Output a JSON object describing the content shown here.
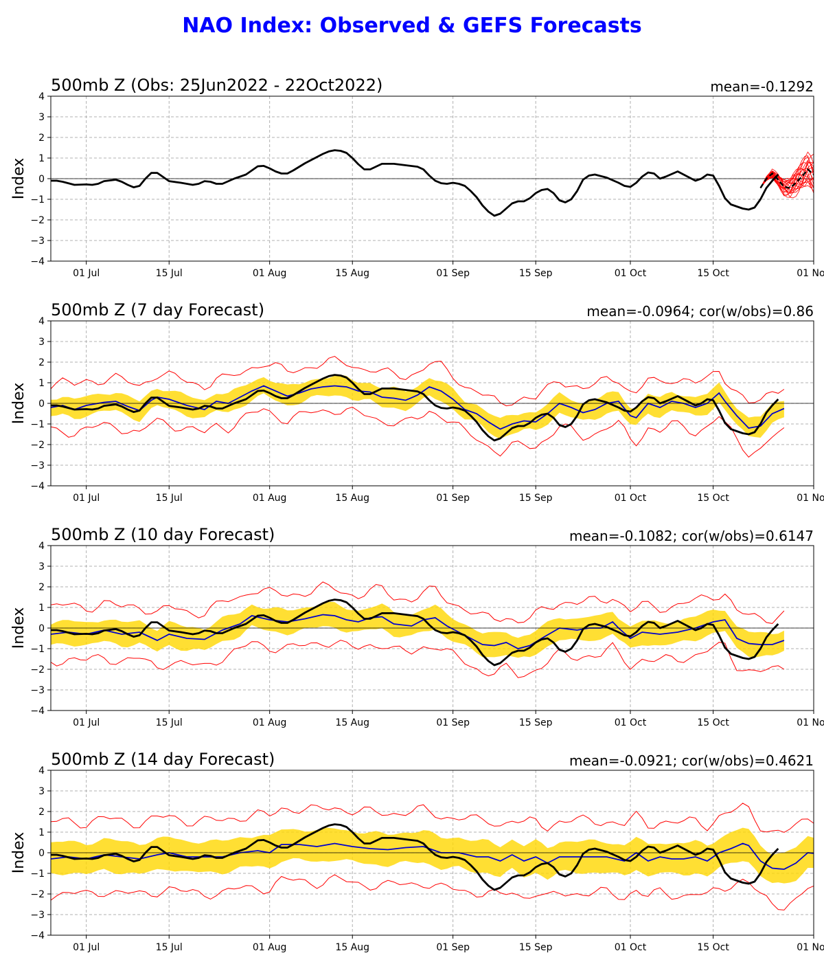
{
  "page": {
    "title": "NAO Index: Observed & GEFS Forecasts"
  },
  "axes_common": {
    "ylabel": "Index",
    "ylim": [
      -4,
      4
    ],
    "yticks": [
      -4,
      -3,
      -2,
      -1,
      0,
      1,
      2,
      3,
      4
    ],
    "xlim_day": [
      -6,
      123
    ],
    "xticks": [
      {
        "day": 0,
        "label": "01 Jul"
      },
      {
        "day": 14,
        "label": "15 Jul"
      },
      {
        "day": 31,
        "label": "01 Aug"
      },
      {
        "day": 45,
        "label": "15 Aug"
      },
      {
        "day": 62,
        "label": "01 Sep"
      },
      {
        "day": 76,
        "label": "15 Sep"
      },
      {
        "day": 92,
        "label": "01 Oct"
      },
      {
        "day": 106,
        "label": "15 Oct"
      },
      {
        "day": 123,
        "label": "01 Nov"
      }
    ],
    "grid": true,
    "colors": {
      "observed": "#000000",
      "ensemble_mean": "#0000cc",
      "spread": "#ffd700",
      "extremes": "#ff0000"
    }
  },
  "observed_knots": [
    [
      -6,
      -0.1
    ],
    [
      -5,
      -0.1
    ],
    [
      -4,
      -0.15
    ],
    [
      -2,
      -0.3
    ],
    [
      0,
      -0.28
    ],
    [
      1,
      -0.3
    ],
    [
      2,
      -0.25
    ],
    [
      3,
      -0.12
    ],
    [
      5,
      -0.05
    ],
    [
      6,
      -0.15
    ],
    [
      7,
      -0.3
    ],
    [
      8,
      -0.42
    ],
    [
      9,
      -0.35
    ],
    [
      10,
      0.0
    ],
    [
      11,
      0.28
    ],
    [
      12,
      0.28
    ],
    [
      14,
      -0.12
    ],
    [
      16,
      -0.2
    ],
    [
      18,
      -0.3
    ],
    [
      19,
      -0.25
    ],
    [
      20,
      -0.12
    ],
    [
      21,
      -0.15
    ],
    [
      22,
      -0.25
    ],
    [
      23,
      -0.25
    ],
    [
      25,
      0.0
    ],
    [
      27,
      0.2
    ],
    [
      29,
      0.6
    ],
    [
      30,
      0.62
    ],
    [
      31,
      0.5
    ],
    [
      32,
      0.35
    ],
    [
      33,
      0.25
    ],
    [
      34,
      0.25
    ],
    [
      35,
      0.4
    ],
    [
      37,
      0.75
    ],
    [
      39,
      1.05
    ],
    [
      40,
      1.2
    ],
    [
      41,
      1.32
    ],
    [
      42,
      1.38
    ],
    [
      43,
      1.35
    ],
    [
      44,
      1.25
    ],
    [
      45,
      1.0
    ],
    [
      46,
      0.7
    ],
    [
      47,
      0.45
    ],
    [
      48,
      0.45
    ],
    [
      50,
      0.72
    ],
    [
      52,
      0.72
    ],
    [
      54,
      0.65
    ],
    [
      56,
      0.58
    ],
    [
      57,
      0.45
    ],
    [
      58,
      0.15
    ],
    [
      59,
      -0.1
    ],
    [
      60,
      -0.22
    ],
    [
      61,
      -0.25
    ],
    [
      62,
      -0.2
    ],
    [
      63,
      -0.25
    ],
    [
      64,
      -0.35
    ],
    [
      65,
      -0.6
    ],
    [
      66,
      -0.9
    ],
    [
      67,
      -1.3
    ],
    [
      68,
      -1.6
    ],
    [
      69,
      -1.8
    ],
    [
      70,
      -1.7
    ],
    [
      71,
      -1.45
    ],
    [
      72,
      -1.2
    ],
    [
      73,
      -1.1
    ],
    [
      74,
      -1.1
    ],
    [
      75,
      -0.95
    ],
    [
      76,
      -0.7
    ],
    [
      77,
      -0.55
    ],
    [
      78,
      -0.5
    ],
    [
      79,
      -0.7
    ],
    [
      80,
      -1.05
    ],
    [
      81,
      -1.15
    ],
    [
      82,
      -1.0
    ],
    [
      83,
      -0.6
    ],
    [
      84,
      -0.05
    ],
    [
      85,
      0.15
    ],
    [
      86,
      0.2
    ],
    [
      88,
      0.05
    ],
    [
      90,
      -0.2
    ],
    [
      91,
      -0.35
    ],
    [
      92,
      -0.4
    ],
    [
      93,
      -0.2
    ],
    [
      94,
      0.1
    ],
    [
      95,
      0.3
    ],
    [
      96,
      0.25
    ],
    [
      97,
      0.0
    ],
    [
      98,
      0.1
    ],
    [
      100,
      0.35
    ],
    [
      101,
      0.2
    ],
    [
      102,
      0.05
    ],
    [
      103,
      -0.1
    ],
    [
      104,
      0.0
    ],
    [
      105,
      0.2
    ],
    [
      106,
      0.15
    ],
    [
      107,
      -0.35
    ],
    [
      108,
      -0.95
    ],
    [
      109,
      -1.25
    ],
    [
      110,
      -1.35
    ],
    [
      111,
      -1.45
    ],
    [
      112,
      -1.5
    ],
    [
      113,
      -1.4
    ],
    [
      114,
      -1.0
    ],
    [
      115,
      -0.45
    ],
    [
      116,
      -0.1
    ],
    [
      117,
      0.2
    ]
  ],
  "panels": [
    {
      "id": "obs",
      "title": "500mb Z (Obs: 25Jun2022 - 22Oct2022)",
      "stats": "mean=-0.1292",
      "chart_data": {
        "type": "line",
        "ensemble_overlay": {
          "color": "#ff0000",
          "ensemble_mean_knots": [
            [
              114,
              -0.45
            ],
            [
              115,
              0.0
            ],
            [
              116,
              0.25
            ],
            [
              117,
              -0.05
            ],
            [
              118,
              -0.4
            ],
            [
              119,
              -0.45
            ],
            [
              120,
              -0.2
            ],
            [
              121,
              0.1
            ],
            [
              122,
              0.45
            ],
            [
              123,
              0.2
            ],
            [
              124,
              0.05
            ],
            [
              125,
              0.05
            ],
            [
              126,
              -0.05
            ],
            [
              127,
              -0.1
            ]
          ],
          "member_amplitude": 1.2
        }
      }
    },
    {
      "id": "d7",
      "title": "500mb Z (7 day Forecast)",
      "stats": "mean=-0.0964; cor(w/obs)=0.86",
      "chart_data": {
        "type": "area",
        "forecast_end_day": 118,
        "spread_half_width": 0.45,
        "extreme_half_width": 1.15,
        "mean_knots": [
          [
            -6,
            -0.2
          ],
          [
            -4,
            -0.1
          ],
          [
            -2,
            -0.3
          ],
          [
            0,
            -0.1
          ],
          [
            3,
            0.05
          ],
          [
            5,
            0.1
          ],
          [
            7,
            -0.15
          ],
          [
            9,
            -0.35
          ],
          [
            11,
            0.15
          ],
          [
            12,
            0.3
          ],
          [
            14,
            0.2
          ],
          [
            17,
            -0.1
          ],
          [
            20,
            -0.3
          ],
          [
            22,
            0.1
          ],
          [
            24,
            0.0
          ],
          [
            26,
            0.3
          ],
          [
            28,
            0.6
          ],
          [
            30,
            0.85
          ],
          [
            32,
            0.6
          ],
          [
            34,
            0.35
          ],
          [
            36,
            0.5
          ],
          [
            38,
            0.7
          ],
          [
            40,
            0.8
          ],
          [
            42,
            0.85
          ],
          [
            44,
            0.8
          ],
          [
            46,
            0.6
          ],
          [
            48,
            0.55
          ],
          [
            50,
            0.3
          ],
          [
            52,
            0.25
          ],
          [
            54,
            0.15
          ],
          [
            56,
            0.4
          ],
          [
            58,
            0.8
          ],
          [
            60,
            0.6
          ],
          [
            62,
            0.2
          ],
          [
            64,
            -0.3
          ],
          [
            66,
            -0.5
          ],
          [
            68,
            -0.9
          ],
          [
            70,
            -1.25
          ],
          [
            72,
            -1.0
          ],
          [
            74,
            -0.85
          ],
          [
            76,
            -0.9
          ],
          [
            78,
            -0.5
          ],
          [
            80,
            0.0
          ],
          [
            82,
            -0.2
          ],
          [
            84,
            -0.45
          ],
          [
            86,
            -0.3
          ],
          [
            88,
            0.0
          ],
          [
            90,
            0.1
          ],
          [
            92,
            -0.6
          ],
          [
            93,
            -0.7
          ],
          [
            95,
            0.0
          ],
          [
            97,
            -0.2
          ],
          [
            99,
            0.1
          ],
          [
            101,
            0.0
          ],
          [
            103,
            -0.2
          ],
          [
            105,
            0.0
          ],
          [
            107,
            0.5
          ],
          [
            108,
            0.1
          ],
          [
            110,
            -0.6
          ],
          [
            112,
            -1.2
          ],
          [
            114,
            -1.1
          ],
          [
            116,
            -0.5
          ],
          [
            118,
            -0.25
          ],
          [
            120,
            -0.35
          ],
          [
            122,
            0.15
          ]
        ]
      }
    },
    {
      "id": "d10",
      "title": "500mb Z (10 day Forecast)",
      "stats": "mean=-0.1082; cor(w/obs)=0.6147",
      "chart_data": {
        "type": "area",
        "forecast_end_day": 118,
        "spread_half_width": 0.55,
        "extreme_half_width": 1.3,
        "mean_knots": [
          [
            -6,
            -0.3
          ],
          [
            -3,
            -0.2
          ],
          [
            0,
            -0.3
          ],
          [
            3,
            -0.1
          ],
          [
            6,
            -0.3
          ],
          [
            9,
            -0.2
          ],
          [
            12,
            -0.6
          ],
          [
            14,
            -0.3
          ],
          [
            17,
            -0.5
          ],
          [
            20,
            -0.55
          ],
          [
            23,
            -0.1
          ],
          [
            26,
            0.2
          ],
          [
            28,
            0.6
          ],
          [
            31,
            0.4
          ],
          [
            34,
            0.3
          ],
          [
            37,
            0.45
          ],
          [
            40,
            0.65
          ],
          [
            42,
            0.6
          ],
          [
            44,
            0.4
          ],
          [
            46,
            0.3
          ],
          [
            48,
            0.5
          ],
          [
            50,
            0.55
          ],
          [
            52,
            0.2
          ],
          [
            55,
            0.1
          ],
          [
            57,
            0.4
          ],
          [
            59,
            0.5
          ],
          [
            61,
            0.1
          ],
          [
            63,
            -0.2
          ],
          [
            65,
            -0.5
          ],
          [
            67,
            -0.8
          ],
          [
            69,
            -0.85
          ],
          [
            71,
            -0.7
          ],
          [
            73,
            -1.0
          ],
          [
            75,
            -0.85
          ],
          [
            77,
            -0.5
          ],
          [
            80,
            0.0
          ],
          [
            83,
            -0.1
          ],
          [
            85,
            0.0
          ],
          [
            87,
            0.0
          ],
          [
            89,
            0.3
          ],
          [
            90,
            0.0
          ],
          [
            92,
            -0.5
          ],
          [
            94,
            -0.2
          ],
          [
            97,
            -0.3
          ],
          [
            100,
            -0.2
          ],
          [
            103,
            0.0
          ],
          [
            106,
            0.3
          ],
          [
            108,
            0.4
          ],
          [
            110,
            -0.5
          ],
          [
            112,
            -0.75
          ],
          [
            114,
            -0.8
          ],
          [
            116,
            -0.8
          ],
          [
            118,
            -0.6
          ],
          [
            120,
            -0.3
          ],
          [
            122,
            0.1
          ],
          [
            124,
            0.1
          ]
        ]
      }
    },
    {
      "id": "d14",
      "title": "500mb Z (14 day Forecast)",
      "stats": "mean=-0.0921; cor(w/obs)=0.4621",
      "chart_data": {
        "type": "area",
        "forecast_end_day": 127,
        "spread_half_width": 0.75,
        "extreme_half_width": 1.75,
        "mean_knots": [
          [
            -6,
            -0.3
          ],
          [
            -3,
            -0.2
          ],
          [
            0,
            -0.3
          ],
          [
            3,
            -0.1
          ],
          [
            6,
            -0.2
          ],
          [
            9,
            -0.3
          ],
          [
            12,
            -0.1
          ],
          [
            14,
            0.0
          ],
          [
            17,
            -0.2
          ],
          [
            20,
            -0.2
          ],
          [
            23,
            -0.2
          ],
          [
            26,
            0.0
          ],
          [
            29,
            0.1
          ],
          [
            31,
            0.0
          ],
          [
            33,
            0.4
          ],
          [
            36,
            0.4
          ],
          [
            39,
            0.3
          ],
          [
            42,
            0.45
          ],
          [
            45,
            0.3
          ],
          [
            48,
            0.2
          ],
          [
            51,
            0.15
          ],
          [
            54,
            0.25
          ],
          [
            57,
            0.3
          ],
          [
            60,
            0.0
          ],
          [
            63,
            0.0
          ],
          [
            66,
            -0.2
          ],
          [
            68,
            -0.2
          ],
          [
            70,
            -0.4
          ],
          [
            72,
            -0.1
          ],
          [
            74,
            -0.4
          ],
          [
            76,
            -0.2
          ],
          [
            78,
            -0.5
          ],
          [
            80,
            -0.2
          ],
          [
            82,
            -0.2
          ],
          [
            85,
            -0.2
          ],
          [
            88,
            -0.2
          ],
          [
            91,
            -0.4
          ],
          [
            93,
            0.0
          ],
          [
            95,
            -0.4
          ],
          [
            97,
            -0.2
          ],
          [
            99,
            -0.3
          ],
          [
            101,
            -0.3
          ],
          [
            103,
            -0.2
          ],
          [
            105,
            -0.4
          ],
          [
            107,
            0.0
          ],
          [
            109,
            0.2
          ],
          [
            111,
            0.45
          ],
          [
            112,
            0.35
          ],
          [
            114,
            -0.4
          ],
          [
            116,
            -0.75
          ],
          [
            118,
            -0.8
          ],
          [
            120,
            -0.5
          ],
          [
            122,
            0.0
          ],
          [
            124,
            -0.05
          ],
          [
            126,
            -0.1
          ],
          [
            127,
            -0.1
          ]
        ]
      }
    }
  ]
}
